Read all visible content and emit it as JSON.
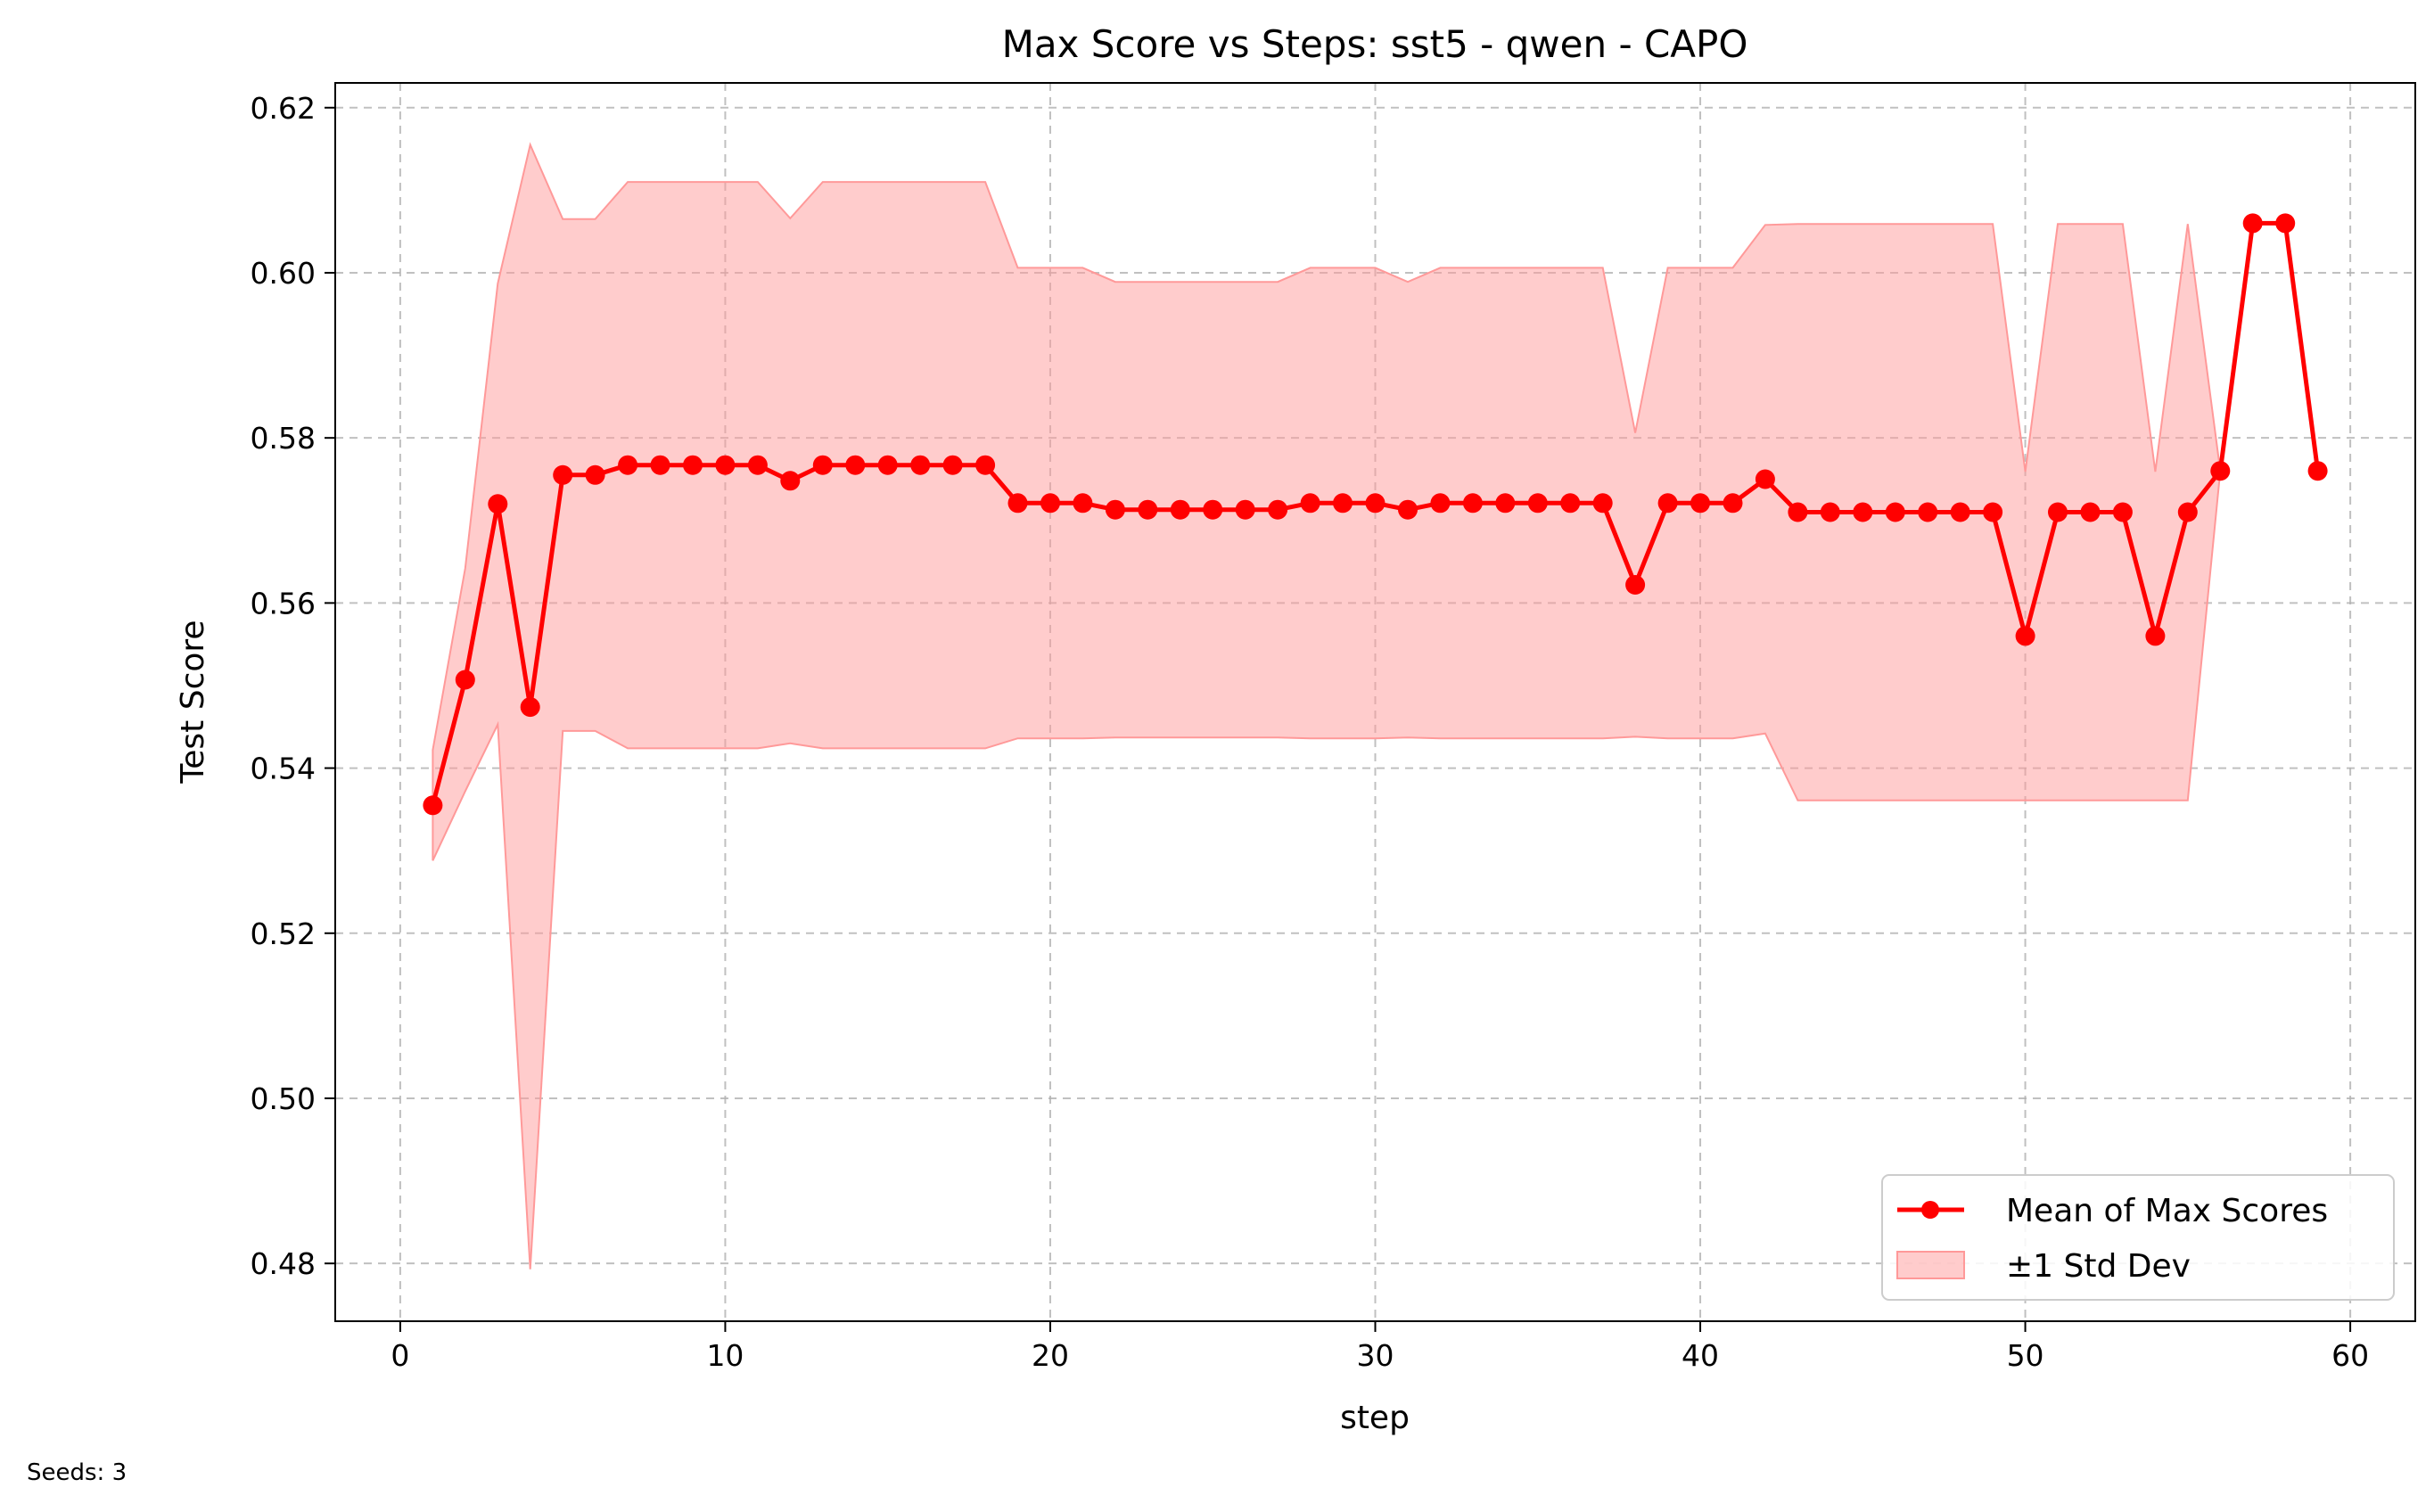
{
  "chart_data": {
    "type": "line",
    "title": "Max Score vs Steps: sst5 - qwen - CAPO",
    "xlabel": "step",
    "ylabel": "Test Score",
    "xlim": [
      -2,
      62
    ],
    "ylim": [
      0.473,
      0.623
    ],
    "xticks": [
      0,
      10,
      20,
      30,
      40,
      50,
      60
    ],
    "yticks": [
      0.48,
      0.5,
      0.52,
      0.54,
      0.56,
      0.58,
      0.6,
      0.62
    ],
    "xtick_labels": [
      "0",
      "10",
      "20",
      "30",
      "40",
      "50",
      "60"
    ],
    "ytick_labels": [
      "0.48",
      "0.50",
      "0.52",
      "0.54",
      "0.56",
      "0.58",
      "0.60",
      "0.62"
    ],
    "grid": true,
    "legend_position": "lower-right",
    "legend": [
      "Mean of Max Scores",
      "±1 Std Dev"
    ],
    "colors": {
      "line": "#ff0000",
      "band": "#ff9999",
      "grid": "#b0b0b0"
    },
    "series": [
      {
        "name": "Mean of Max Scores",
        "x": [
          1,
          2,
          3,
          4,
          5,
          6,
          7,
          8,
          9,
          10,
          11,
          12,
          13,
          14,
          15,
          16,
          17,
          18,
          19,
          20,
          21,
          22,
          23,
          24,
          25,
          26,
          27,
          28,
          29,
          30,
          31,
          32,
          33,
          34,
          35,
          36,
          37,
          38,
          39,
          40,
          41,
          42,
          43,
          44,
          45,
          46,
          47,
          48,
          49,
          50,
          51,
          52,
          53,
          54,
          55,
          56,
          57,
          58,
          59
        ],
        "y": [
          0.5355,
          0.5507,
          0.572,
          0.5474,
          0.5755,
          0.5755,
          0.5767,
          0.5767,
          0.5767,
          0.5767,
          0.5767,
          0.5748,
          0.5767,
          0.5767,
          0.5767,
          0.5767,
          0.5767,
          0.5767,
          0.5721,
          0.5721,
          0.5721,
          0.5713,
          0.5713,
          0.5713,
          0.5713,
          0.5713,
          0.5713,
          0.5721,
          0.5721,
          0.5721,
          0.5713,
          0.5721,
          0.5721,
          0.5721,
          0.5721,
          0.5721,
          0.5721,
          0.5622,
          0.5721,
          0.5721,
          0.5721,
          0.575,
          0.571,
          0.571,
          0.571,
          0.571,
          0.571,
          0.571,
          0.571,
          0.556,
          0.571,
          0.571,
          0.571,
          0.556,
          0.571,
          0.576,
          0.606,
          0.606,
          0.576
        ]
      },
      {
        "name": "±1 Std Dev",
        "x": [
          1,
          2,
          3,
          4,
          5,
          6,
          7,
          8,
          9,
          10,
          11,
          12,
          13,
          14,
          15,
          16,
          17,
          18,
          19,
          20,
          21,
          22,
          23,
          24,
          25,
          26,
          27,
          28,
          29,
          30,
          31,
          32,
          33,
          34,
          35,
          36,
          37,
          38,
          39,
          40,
          41,
          42,
          43,
          44,
          45,
          46,
          47,
          48,
          49,
          50,
          51,
          52,
          53,
          54,
          55,
          56,
          57,
          58,
          59
        ],
        "lower": [
          0.5288,
          0.5372,
          0.5453,
          0.4793,
          0.5445,
          0.5445,
          0.5424,
          0.5424,
          0.5424,
          0.5424,
          0.5424,
          0.543,
          0.5424,
          0.5424,
          0.5424,
          0.5424,
          0.5424,
          0.5424,
          0.5436,
          0.5436,
          0.5436,
          0.5437,
          0.5437,
          0.5437,
          0.5437,
          0.5437,
          0.5437,
          0.5436,
          0.5436,
          0.5436,
          0.5437,
          0.5436,
          0.5436,
          0.5436,
          0.5436,
          0.5436,
          0.5436,
          0.5438,
          0.5436,
          0.5436,
          0.5436,
          0.5442,
          0.5361,
          0.5361,
          0.5361,
          0.5361,
          0.5361,
          0.5361,
          0.5361,
          0.5361,
          0.5361,
          0.5361,
          0.5361,
          0.5361,
          0.5361,
          0.576,
          0.606,
          0.606,
          0.576
        ],
        "upper": [
          0.5422,
          0.5642,
          0.5987,
          0.6155,
          0.6065,
          0.6065,
          0.611,
          0.611,
          0.611,
          0.611,
          0.611,
          0.6066,
          0.611,
          0.611,
          0.611,
          0.611,
          0.611,
          0.611,
          0.6006,
          0.6006,
          0.6006,
          0.5989,
          0.5989,
          0.5989,
          0.5989,
          0.5989,
          0.5989,
          0.6006,
          0.6006,
          0.6006,
          0.5989,
          0.6006,
          0.6006,
          0.6006,
          0.6006,
          0.6006,
          0.6006,
          0.5806,
          0.6006,
          0.6006,
          0.6006,
          0.6058,
          0.6059,
          0.6059,
          0.6059,
          0.6059,
          0.6059,
          0.6059,
          0.6059,
          0.5759,
          0.6059,
          0.6059,
          0.6059,
          0.5759,
          0.6059,
          0.576,
          0.606,
          0.606,
          0.576
        ]
      }
    ]
  },
  "footnote": "Seeds: 3"
}
